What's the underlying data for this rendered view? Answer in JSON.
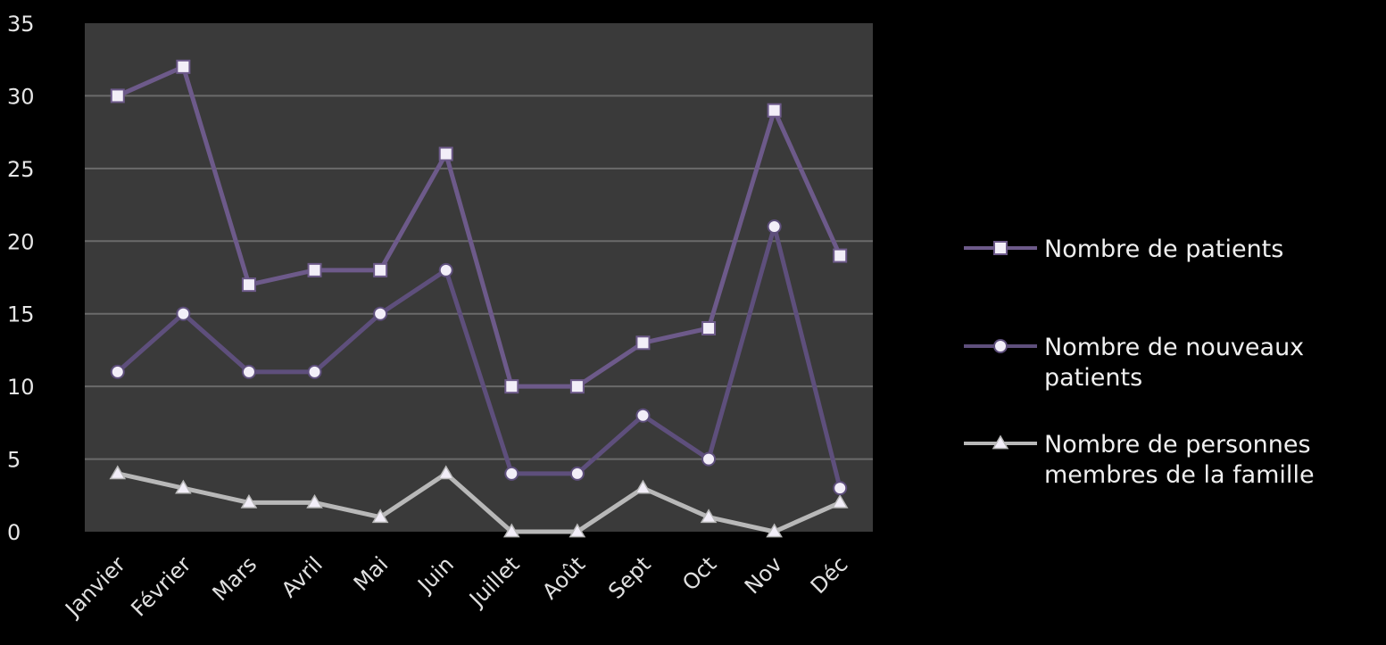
{
  "chart_data": {
    "type": "line",
    "categories": [
      "Janvier",
      "Février",
      "Mars",
      "Avril",
      "Mai",
      "Juin",
      "Juillet",
      "Août",
      "Sept",
      "Oct",
      "Nov",
      "Déc"
    ],
    "series": [
      {
        "name": "Nombre de patients",
        "values": [
          30,
          32,
          17,
          18,
          18,
          26,
          10,
          10,
          13,
          14,
          29,
          19
        ],
        "color": "#6d5a8a",
        "marker": "square"
      },
      {
        "name": "Nombre de nouveaux patients",
        "values": [
          11,
          15,
          11,
          11,
          15,
          18,
          4,
          4,
          8,
          5,
          21,
          3
        ],
        "color": "#5e4f7c",
        "marker": "circle"
      },
      {
        "name": "Nombre de personnes membres de la famille",
        "values": [
          4,
          3,
          2,
          2,
          1,
          4,
          0,
          0,
          3,
          1,
          0,
          2
        ],
        "color": "#b8b8b8",
        "marker": "triangle"
      }
    ],
    "ylim": [
      0,
      35
    ],
    "yticks": [
      "0",
      "5",
      "10",
      "15",
      "20",
      "25",
      "30",
      "35"
    ],
    "grid": true,
    "legend_position": "right",
    "plot_background": "#3a3a3a",
    "marker_fill": "#f2eef8"
  }
}
